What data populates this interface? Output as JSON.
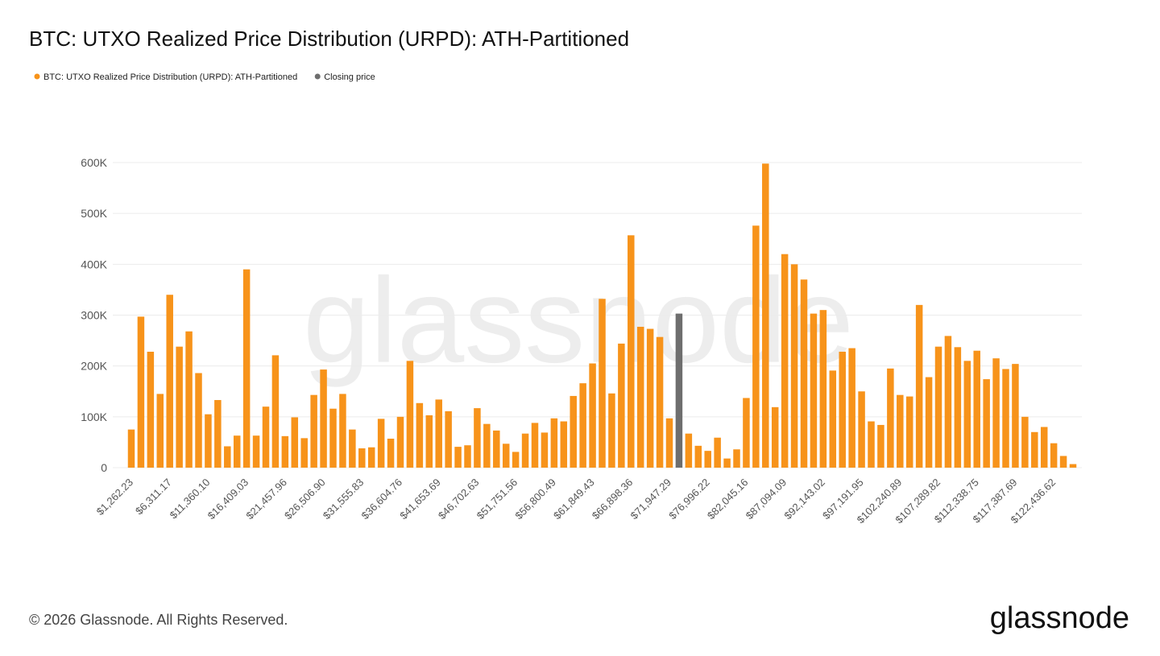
{
  "chart_data": {
    "type": "bar",
    "title": "BTC: UTXO Realized Price Distribution (URPD): ATH-Partitioned",
    "watermark": "glassnode",
    "footer": "© 2026 Glassnode. All Rights Reserved.",
    "logo": "glassnode",
    "legend_position": "top-left",
    "grid": true,
    "ylim": [
      0,
      600000
    ],
    "yticks": [
      0,
      {
        "value": 100000,
        "label": "100K"
      },
      {
        "value": 200000,
        "label": "200K"
      },
      {
        "value": 300000,
        "label": "300K"
      },
      {
        "value": 400000,
        "label": "400K"
      },
      {
        "value": 500000,
        "label": "500K"
      },
      {
        "value": 600000,
        "label": "600K"
      }
    ],
    "categories": [
      "$1,262.23",
      null,
      null,
      null,
      "$6,311.17",
      null,
      null,
      null,
      "$11,360.10",
      null,
      null,
      null,
      "$16,409.03",
      null,
      null,
      null,
      "$21,457.96",
      null,
      null,
      null,
      "$26,506.90",
      null,
      null,
      null,
      "$31,555.83",
      null,
      null,
      null,
      "$36,604.76",
      null,
      null,
      null,
      "$41,653.69",
      null,
      null,
      null,
      "$46,702.63",
      null,
      null,
      null,
      "$51,751.56",
      null,
      null,
      null,
      "$56,800.49",
      null,
      null,
      null,
      "$61,849.43",
      null,
      null,
      null,
      "$66,898.36",
      null,
      null,
      null,
      "$71,947.29",
      null,
      null,
      null,
      "$76,996.22",
      null,
      null,
      null,
      "$82,045.16",
      null,
      null,
      null,
      "$87,094.09",
      null,
      null,
      null,
      "$92,143.02",
      null,
      null,
      null,
      "$97,191.95",
      null,
      null,
      null,
      "$102,240.89",
      null,
      null,
      null,
      "$107,289.82",
      null,
      null,
      null,
      "$112,338.75",
      null,
      null,
      null,
      "$117,387.69",
      null,
      null,
      null,
      "$122,436.62",
      null,
      null
    ],
    "series": [
      {
        "name": "BTC: UTXO Realized Price Distribution (URPD): ATH-Partitioned",
        "color": "#f7931a",
        "values": [
          75000,
          297000,
          228000,
          145000,
          340000,
          238000,
          268000,
          186000,
          105000,
          133000,
          42000,
          63000,
          390000,
          63000,
          120000,
          221000,
          62000,
          99000,
          58000,
          143000,
          193000,
          116000,
          145000,
          75000,
          38000,
          40000,
          96000,
          57000,
          100000,
          210000,
          127000,
          103000,
          134000,
          111000,
          41000,
          44000,
          117000,
          86000,
          73000,
          47000,
          31000,
          67000,
          88000,
          69000,
          97000,
          91000,
          141000,
          166000,
          205000,
          332000,
          146000,
          244000,
          457000,
          277000,
          273000,
          257000,
          97000,
          null,
          67000,
          43000,
          33000,
          59000,
          18000,
          36000,
          137000,
          476000,
          598000,
          119000,
          420000,
          400000,
          370000,
          303000,
          310000,
          191000,
          228000,
          235000,
          150000,
          91000,
          84000,
          195000,
          143000,
          140000,
          320000,
          178000,
          238000,
          259000,
          237000,
          210000,
          230000,
          174000,
          215000,
          194000,
          204000,
          100000,
          70000,
          80000,
          48000,
          23000,
          7000
        ]
      },
      {
        "name": "Closing price",
        "color": "#6e6e6e",
        "values": [
          null,
          null,
          null,
          null,
          null,
          null,
          null,
          null,
          null,
          null,
          null,
          null,
          null,
          null,
          null,
          null,
          null,
          null,
          null,
          null,
          null,
          null,
          null,
          null,
          null,
          null,
          null,
          null,
          null,
          null,
          null,
          null,
          null,
          null,
          null,
          null,
          null,
          null,
          null,
          null,
          null,
          null,
          null,
          null,
          null,
          null,
          null,
          null,
          null,
          null,
          null,
          null,
          null,
          null,
          null,
          null,
          null,
          303000,
          null,
          null,
          null,
          null,
          null,
          null,
          null,
          null,
          null,
          null,
          null,
          null,
          null,
          null,
          null,
          null,
          null,
          null,
          null,
          null,
          null,
          null,
          null,
          null,
          null,
          null,
          null,
          null,
          null,
          null,
          null,
          null,
          null,
          null,
          null,
          null,
          null,
          null,
          null,
          null,
          null
        ]
      }
    ]
  }
}
